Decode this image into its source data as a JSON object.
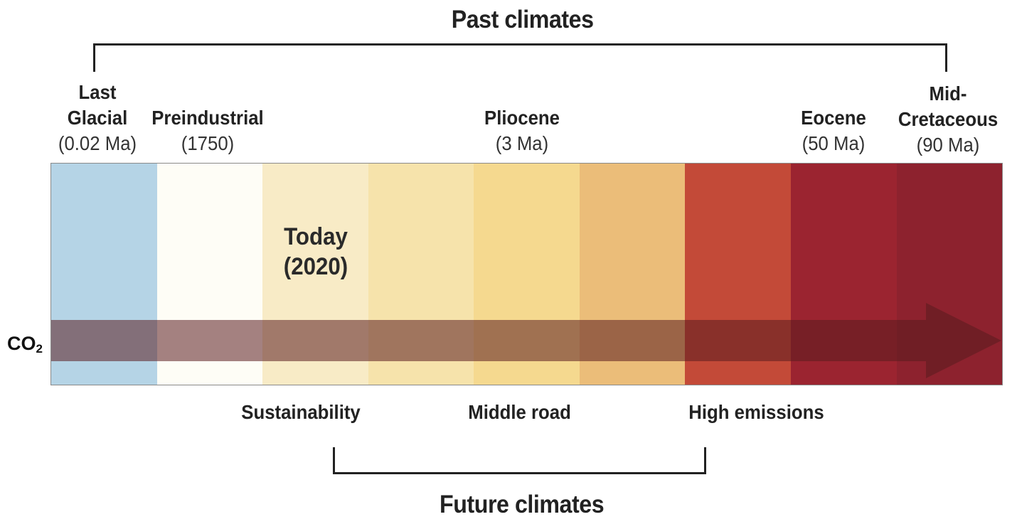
{
  "past_climates": {
    "title": "Past climates",
    "periods": [
      {
        "name": "Last",
        "name2": "Glacial",
        "date": "(0.02 Ma)"
      },
      {
        "name": "Preindustrial",
        "date": "(1750)"
      },
      {
        "name": "Pliocene",
        "date": "(3 Ma)"
      },
      {
        "name": "Eocene",
        "date": "(50 Ma)"
      },
      {
        "name": "Mid-",
        "name2": "Cretaceous",
        "date": "(90 Ma)"
      }
    ]
  },
  "today": {
    "line1": "Today",
    "line2": "(2020)"
  },
  "co2": {
    "label": "CO",
    "subscript": "2"
  },
  "bands": {
    "colors": [
      "#b5d4e6",
      "#fefdf6",
      "#f8ebc6",
      "#f6e3ab",
      "#f5d98f",
      "#ebbd79",
      "#c34a38",
      "#9b2430",
      "#8d222e"
    ]
  },
  "arrow": {
    "color": "#5a1b1f"
  },
  "future_climates": {
    "title": "Future climates",
    "scenarios": [
      {
        "label": "Sustainability"
      },
      {
        "label": "Middle road"
      },
      {
        "label": "High emissions"
      }
    ]
  }
}
